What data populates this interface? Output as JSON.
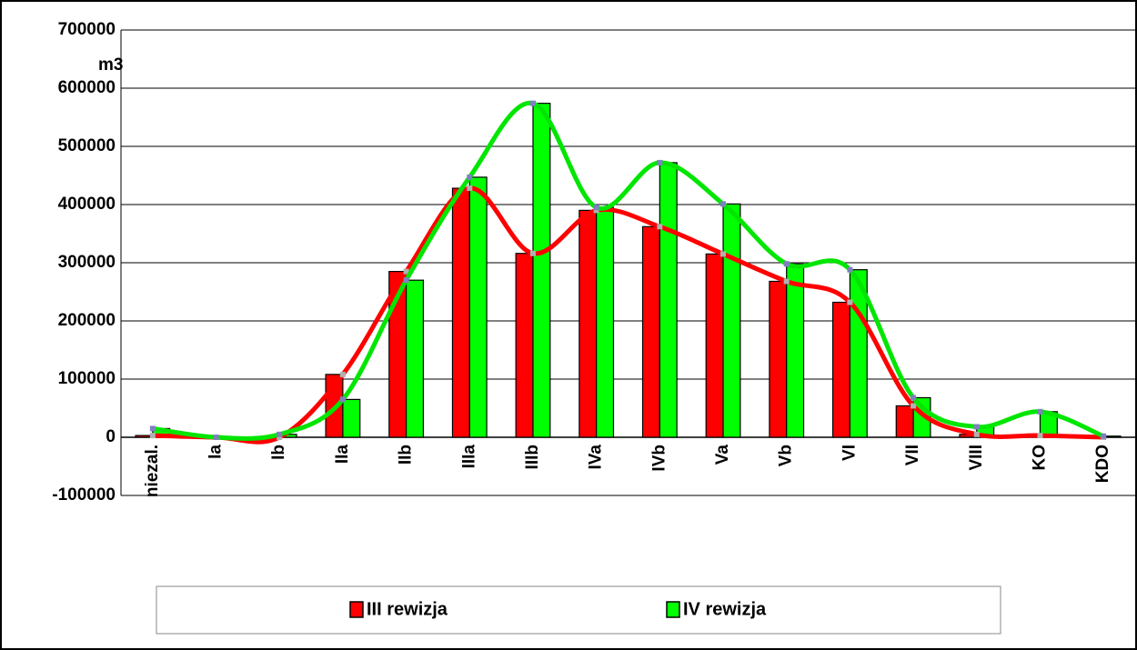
{
  "chart_data": {
    "type": "bar_line",
    "ylabel": "m3",
    "categories": [
      "niezal.",
      "Ia",
      "Ib",
      "IIa",
      "IIb",
      "IIIa",
      "IIIb",
      "IVa",
      "IVb",
      "Va",
      "Vb",
      "VI",
      "VII",
      "VIII",
      "KO",
      "KDO"
    ],
    "series": [
      {
        "name": "III rewizja",
        "color": "#ff0000",
        "values": [
          3000,
          0,
          0,
          108000,
          285000,
          428000,
          316000,
          390000,
          362000,
          315000,
          268000,
          232000,
          54000,
          5000,
          3000,
          0
        ]
      },
      {
        "name": "IV rewizja",
        "color": "#00ff00",
        "values": [
          15000,
          0,
          5000,
          65000,
          270000,
          447000,
          574000,
          395000,
          472000,
          401000,
          298000,
          288000,
          68000,
          18000,
          44000,
          2000
        ]
      }
    ],
    "ylim": [
      -100000,
      700000
    ],
    "yticks": [
      -100000,
      0,
      100000,
      200000,
      300000,
      400000,
      500000,
      600000,
      700000
    ],
    "grid": true,
    "legend": "bottom"
  }
}
